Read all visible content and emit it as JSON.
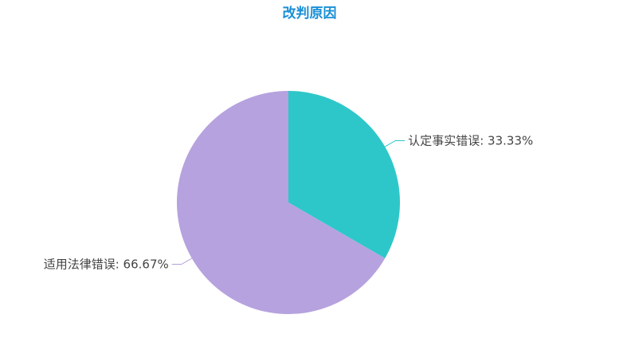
{
  "chart_data": {
    "type": "pie",
    "title": "改判原因",
    "slices": [
      {
        "name": "认定事实错误",
        "value": 33.33,
        "label": "认定事实错误: 33.33%",
        "color": "#2ec7c9"
      },
      {
        "name": "适用法律错误",
        "value": 66.67,
        "label": "适用法律错误: 66.67%",
        "color": "#b6a2de"
      }
    ],
    "start_angle": "top",
    "direction": "clockwise"
  }
}
